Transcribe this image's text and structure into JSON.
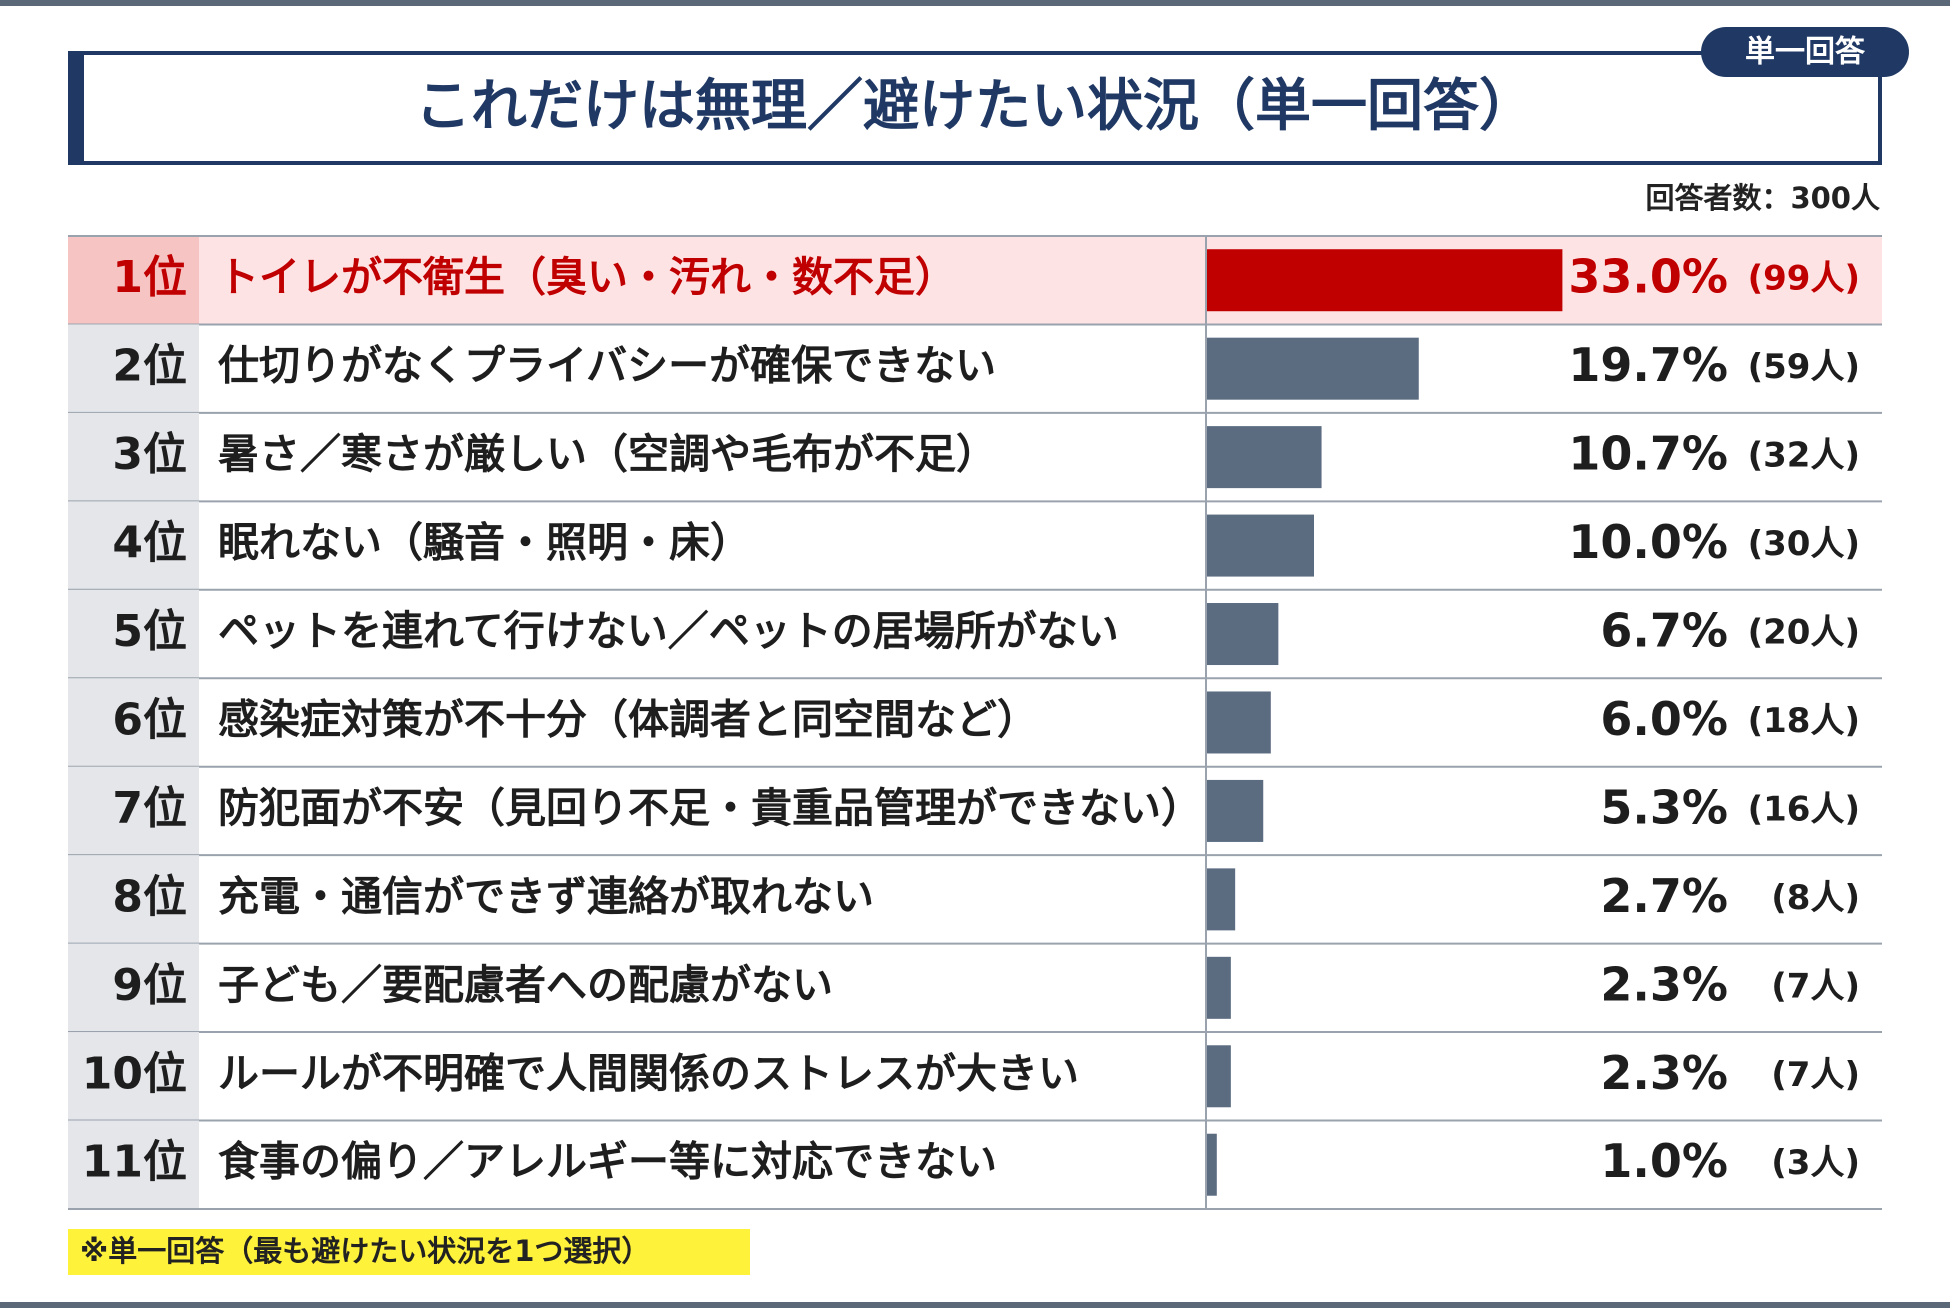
{
  "chart_data": {
    "type": "bar",
    "title": "これだけは無理／避けたい状況（単一回答）",
    "badge": "単一回答",
    "note": "回答者数：300人",
    "footnote": "※単一回答（最も避けたい状況を1つ選択）",
    "ranks": [
      "1位",
      "2位",
      "3位",
      "4位",
      "5位",
      "6位",
      "7位",
      "8位",
      "9位",
      "10位",
      "11位"
    ],
    "categories": [
      "トイレが不衛生（臭い・汚れ・数不足）",
      "仕切りがなくプライバシーが確保できない",
      "暑さ／寒さが厳しい（空調や毛布が不足）",
      "眠れない（騒音・照明・床）",
      "ペットを連れて行けない／ペットの居場所がない",
      "感染症対策が不十分（体調者と同空間など）",
      "防犯面が不安（見回り不足・貴重品管理ができない）",
      "充電・通信ができず連絡が取れない",
      "子ども／要配慮者への配慮がない",
      "ルールが不明確で人間関係のストレスが大きい",
      "食事の偏り／アレルギー等に対応できない"
    ],
    "values": [
      33.0,
      19.7,
      10.7,
      10.0,
      6.7,
      6.0,
      5.3,
      2.7,
      2.3,
      2.3,
      1.0
    ],
    "value_labels": [
      "33.0%",
      "19.7%",
      "10.7%",
      "10.0%",
      "6.7%",
      "6.0%",
      "5.3%",
      "2.7%",
      "2.3%",
      "2.3%",
      "1.0%"
    ],
    "count_labels": [
      "(99人)",
      "(59人)",
      "(32人)",
      "(30人)",
      "(20人)",
      "(18人)",
      "(16人)",
      "(8人)",
      "(7人)",
      "(7人)",
      "(3人)"
    ],
    "color": "#5b6b80",
    "highlight": 0,
    "highlight_color": "#c00000"
  }
}
